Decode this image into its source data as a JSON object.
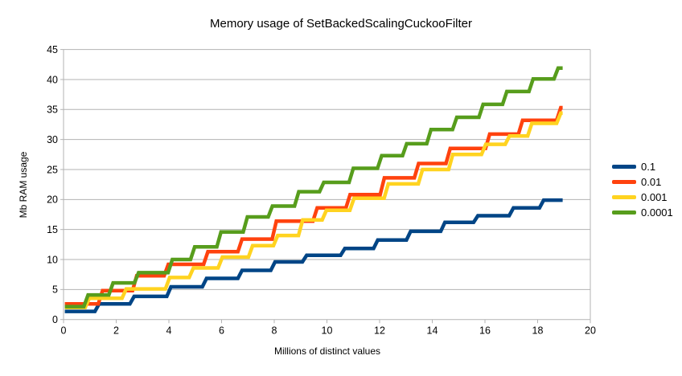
{
  "chart_data": {
    "type": "line",
    "line_style": "step",
    "title": "Memory usage of SetBackedScalingCuckooFilter",
    "xlabel": "Millions of distinct values",
    "ylabel": "Mb RAM usage",
    "xlim": [
      0,
      20
    ],
    "ylim": [
      0,
      45
    ],
    "x_ticks": [
      0,
      2,
      4,
      6,
      8,
      10,
      12,
      14,
      16,
      18,
      20
    ],
    "y_ticks": [
      0,
      5,
      10,
      15,
      20,
      25,
      30,
      35,
      40,
      45
    ],
    "grid": "horizontal",
    "gridline_color": "#b3b3b3",
    "legend_position": "right",
    "series": [
      {
        "name": "0.1",
        "color": "#004586",
        "x_start": 0.05,
        "x_end": 18.95,
        "start_value": 1.35,
        "steps": [
          [
            1.27,
            2.6
          ],
          [
            2.6,
            3.85
          ],
          [
            4.0,
            5.45
          ],
          [
            5.35,
            6.85
          ],
          [
            6.7,
            8.2
          ],
          [
            7.95,
            9.6
          ],
          [
            9.15,
            10.7
          ],
          [
            10.6,
            11.85
          ],
          [
            11.85,
            13.25
          ],
          [
            13.1,
            14.7
          ],
          [
            14.4,
            16.2
          ],
          [
            15.65,
            17.3
          ],
          [
            17.0,
            18.6
          ],
          [
            18.15,
            19.9
          ]
        ]
      },
      {
        "name": "0.01",
        "color": "#FF420E",
        "x_start": 0.05,
        "x_end": 18.95,
        "start_value": 2.6,
        "steps": [
          [
            1.4,
            4.8
          ],
          [
            2.7,
            7.3
          ],
          [
            3.9,
            9.2
          ],
          [
            5.4,
            11.3
          ],
          [
            6.7,
            13.4
          ],
          [
            8.0,
            16.4
          ],
          [
            9.55,
            18.6
          ],
          [
            10.8,
            20.8
          ],
          [
            12.1,
            23.6
          ],
          [
            13.4,
            26.0
          ],
          [
            14.6,
            28.5
          ],
          [
            16.1,
            30.9
          ],
          [
            17.35,
            33.2
          ],
          [
            18.8,
            35.3
          ]
        ]
      },
      {
        "name": "0.001",
        "color": "#FFD320",
        "x_start": 0.05,
        "x_end": 18.95,
        "start_value": 2.0,
        "steps": [
          [
            0.9,
            3.55
          ],
          [
            2.3,
            5.1
          ],
          [
            3.95,
            7.0
          ],
          [
            4.85,
            8.6
          ],
          [
            5.95,
            10.4
          ],
          [
            7.1,
            12.3
          ],
          [
            8.05,
            14.0
          ],
          [
            9.0,
            16.6
          ],
          [
            9.9,
            18.2
          ],
          [
            10.95,
            20.2
          ],
          [
            12.25,
            22.6
          ],
          [
            13.55,
            25.0
          ],
          [
            14.7,
            27.5
          ],
          [
            15.95,
            29.2
          ],
          [
            16.85,
            30.6
          ],
          [
            17.7,
            32.7
          ],
          [
            18.8,
            34.4
          ]
        ]
      },
      {
        "name": "0.0001",
        "color": "#579D1C",
        "x_start": 0.05,
        "x_end": 18.95,
        "start_value": 2.15,
        "steps": [
          [
            0.85,
            4.1
          ],
          [
            1.8,
            6.1
          ],
          [
            2.77,
            7.8
          ],
          [
            4.05,
            10.0
          ],
          [
            4.9,
            12.1
          ],
          [
            5.9,
            14.6
          ],
          [
            6.9,
            17.1
          ],
          [
            7.85,
            18.9
          ],
          [
            8.85,
            21.3
          ],
          [
            9.8,
            22.85
          ],
          [
            10.92,
            25.2
          ],
          [
            12.0,
            27.3
          ],
          [
            12.95,
            29.3
          ],
          [
            13.87,
            31.65
          ],
          [
            14.85,
            33.7
          ],
          [
            15.85,
            35.85
          ],
          [
            16.75,
            38.0
          ],
          [
            17.75,
            40.1
          ],
          [
            18.7,
            41.9
          ]
        ]
      }
    ]
  }
}
